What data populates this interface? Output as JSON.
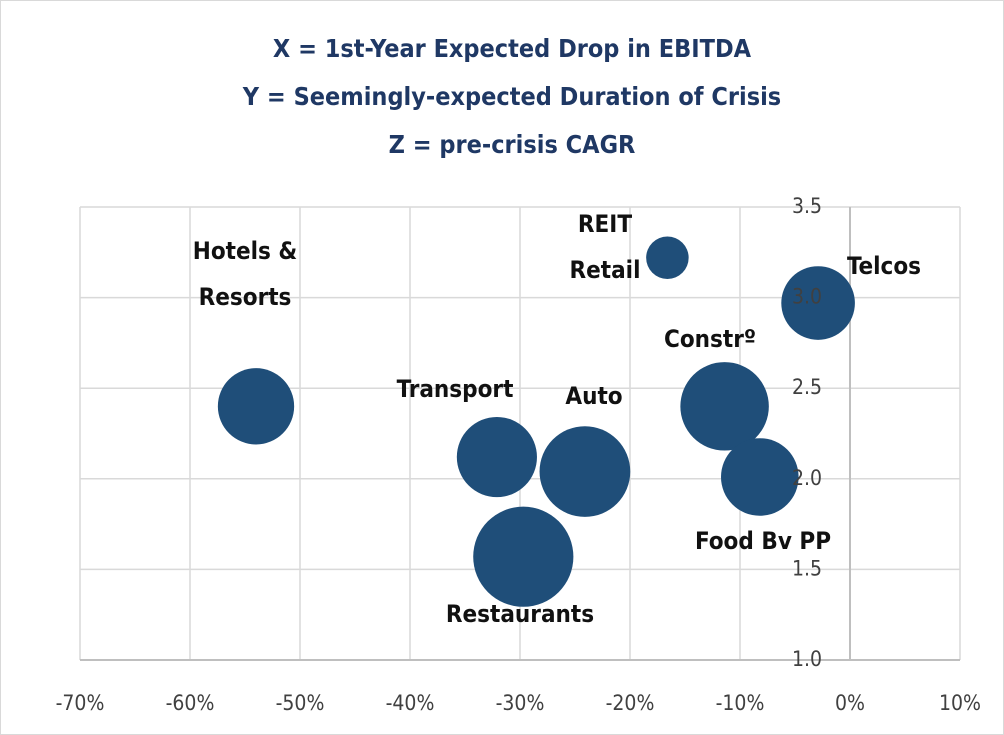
{
  "chart_data": {
    "type": "bubble",
    "title": [
      "X = 1st-Year Expected Drop in EBITDA",
      "Y = Seemingly-expected Duration of Crisis",
      "Z = pre-crisis CAGR"
    ],
    "labels": [
      [
        "Hotels &",
        "Resorts"
      ],
      [
        "REIT",
        "Retail"
      ],
      [
        "Telcos"
      ],
      [
        "Constrº"
      ],
      [
        "Transport"
      ],
      [
        "Auto"
      ],
      [
        "Food Bv PP"
      ],
      [
        "Restaurants"
      ]
    ],
    "x": [
      -54,
      -16.6,
      -2.9,
      -11.4,
      -32.1,
      -24.1,
      -8.2,
      -29.7
    ],
    "values": [
      2.4,
      3.22,
      2.97,
      2.4,
      2.12,
      2.04,
      2.01,
      1.57
    ],
    "sizes": [
      2.9,
      0.9,
      2.7,
      3.9,
      3.2,
      4.1,
      3.0,
      5.0
    ],
    "color": "#1f4e79",
    "xlim": [
      -70,
      10
    ],
    "xticks": [
      {
        "value": -70,
        "label": "-70%"
      },
      {
        "value": -60,
        "label": "-60%"
      },
      {
        "value": -50,
        "label": "-50%"
      },
      {
        "value": -40,
        "label": "-40%"
      },
      {
        "value": -30,
        "label": "-30%"
      },
      {
        "value": -20,
        "label": "-20%"
      },
      {
        "value": -10,
        "label": "-10%"
      },
      {
        "value": 0,
        "label": "0%"
      },
      {
        "value": 10,
        "label": "10%"
      }
    ],
    "ylim": [
      1,
      3.5
    ],
    "yticks": [
      {
        "value": 1,
        "label": "1.0"
      },
      1.5,
      {
        "value": 2,
        "label": "2.0"
      },
      2.5,
      {
        "value": 3,
        "label": "3.0"
      },
      3.5
    ],
    "grid": true
  }
}
